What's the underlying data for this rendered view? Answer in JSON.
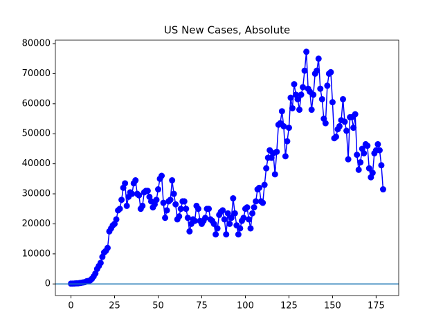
{
  "chart_data": {
    "type": "line",
    "title": "US New Cases, Absolute",
    "x": [
      0,
      1,
      2,
      3,
      4,
      5,
      6,
      7,
      8,
      9,
      10,
      11,
      12,
      13,
      14,
      15,
      16,
      17,
      18,
      19,
      20,
      21,
      22,
      23,
      24,
      25,
      26,
      27,
      28,
      29,
      30,
      31,
      32,
      33,
      34,
      35,
      36,
      37,
      38,
      39,
      40,
      41,
      42,
      43,
      44,
      45,
      46,
      47,
      48,
      49,
      50,
      51,
      52,
      53,
      54,
      55,
      56,
      57,
      58,
      59,
      60,
      61,
      62,
      63,
      64,
      65,
      66,
      67,
      68,
      69,
      70,
      71,
      72,
      73,
      74,
      75,
      76,
      77,
      78,
      79,
      80,
      81,
      82,
      83,
      84,
      85,
      86,
      87,
      88,
      89,
      90,
      91,
      92,
      93,
      94,
      95,
      96,
      97,
      98,
      99,
      100,
      101,
      102,
      103,
      104,
      105,
      106,
      107,
      108,
      109,
      110,
      111,
      112,
      113,
      114,
      115,
      116,
      117,
      118,
      119,
      120,
      121,
      122,
      123,
      124,
      125,
      126,
      127,
      128,
      129,
      130,
      131,
      132,
      133,
      134,
      135,
      136,
      137,
      138,
      139,
      140,
      141,
      142,
      143,
      144,
      145,
      146,
      147,
      148,
      149,
      150,
      151,
      152,
      153,
      154,
      155,
      156,
      157,
      158,
      159,
      160,
      161,
      162,
      163,
      164,
      165,
      166,
      167,
      168,
      169,
      170,
      171,
      172,
      173,
      174,
      175,
      176,
      177,
      178,
      179
    ],
    "series": [
      {
        "color": "#0000ff",
        "values": [
          100,
          100,
          150,
          200,
          200,
          300,
          400,
          500,
          600,
          900,
          1000,
          1200,
          1700,
          2500,
          3500,
          5000,
          6000,
          7000,
          9000,
          10500,
          11000,
          12000,
          17500,
          18500,
          19500,
          20000,
          21500,
          24500,
          25000,
          28000,
          32000,
          33500,
          26000,
          29000,
          30500,
          30000,
          33500,
          34500,
          30000,
          29500,
          25000,
          26000,
          30500,
          31000,
          31000,
          29000,
          27500,
          25500,
          26500,
          28000,
          31500,
          35000,
          36000,
          27000,
          22000,
          24500,
          27500,
          28000,
          34500,
          30000,
          26500,
          21500,
          22500,
          25000,
          27500,
          27500,
          25000,
          22000,
          17500,
          20000,
          21500,
          21000,
          26000,
          25000,
          21000,
          20000,
          21000,
          22000,
          25000,
          25000,
          21500,
          21000,
          20000,
          16500,
          18500,
          23000,
          24000,
          24500,
          21500,
          16500,
          23500,
          20000,
          22000,
          28500,
          23500,
          19500,
          16500,
          18500,
          21000,
          22000,
          25000,
          25500,
          21500,
          18500,
          23500,
          25500,
          27500,
          31500,
          32000,
          27500,
          27000,
          33000,
          38500,
          42000,
          44500,
          42000,
          43500,
          36500,
          44000,
          53000,
          53500,
          57500,
          52500,
          42500,
          47500,
          52000,
          62000,
          58500,
          66500,
          63000,
          61500,
          58000,
          63000,
          65500,
          71000,
          77300,
          65000,
          64000,
          58000,
          63000,
          70000,
          71000,
          75000,
          65000,
          61500,
          55000,
          53500,
          66000,
          70000,
          70500,
          60500,
          48500,
          49000,
          51500,
          52500,
          54500,
          61500,
          54000,
          51000,
          41500,
          55500,
          55500,
          52000,
          56500,
          43000,
          38000,
          40500,
          45000,
          43500,
          46500,
          46000,
          38500,
          35500,
          37000,
          43500,
          44500,
          46500,
          44500,
          39500,
          31500
        ]
      }
    ],
    "hline": {
      "value": 0,
      "color": "#1f77b4"
    },
    "xlim": [
      -8.95,
      187.95
    ],
    "ylim": [
      -3865,
      81165
    ],
    "xticks": [
      0,
      25,
      50,
      75,
      100,
      125,
      150,
      175
    ],
    "yticks": [
      0,
      10000,
      20000,
      30000,
      40000,
      50000,
      60000,
      70000,
      80000
    ]
  }
}
